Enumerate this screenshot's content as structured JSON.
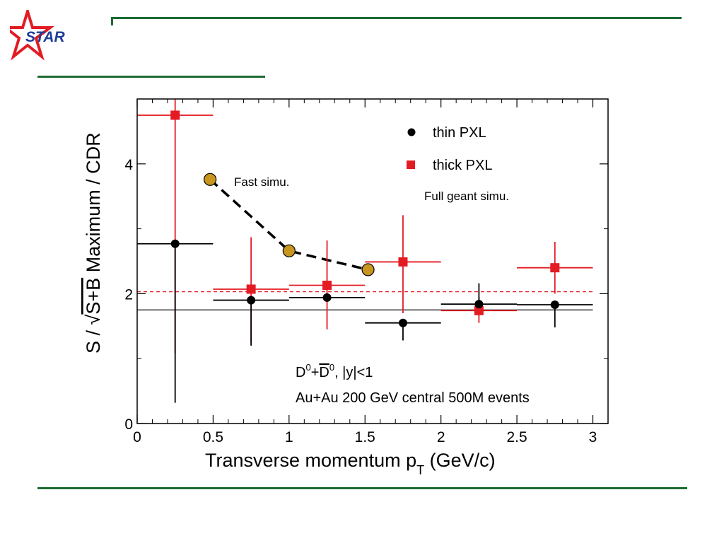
{
  "logo": {
    "text": "STAR",
    "star_color": "#e31b23",
    "text_color": "#1f3d99"
  },
  "colors": {
    "rule": "#1e6b32",
    "thin": "#000000",
    "thick": "#e31b23",
    "fast": "#c8961e"
  },
  "chart_data": {
    "type": "scatter",
    "xlabel_main": "Transverse momentum p",
    "xlabel_sub": "T",
    "xlabel_tail": " (GeV/c)",
    "ylabel_pre": "S / ",
    "ylabel_root": "S+B",
    "ylabel_post": " Maximum / CDR",
    "xlim": [
      0,
      3.1
    ],
    "ylim": [
      0,
      5
    ],
    "x_ticks": [
      "0",
      "0.5",
      "1",
      "1.5",
      "2",
      "2.5",
      "3"
    ],
    "y_ticks": [
      "0",
      "2",
      "4"
    ],
    "grid": false,
    "legend_position": "top-right",
    "series": [
      {
        "name": "thin PXL",
        "marker": "circle",
        "color": "#000000",
        "points": [
          {
            "x": 0.25,
            "y": 2.77,
            "xerr": 0.25,
            "ylo": 0.32,
            "yhi": 2.77
          },
          {
            "x": 0.75,
            "y": 1.9,
            "xerr": 0.25,
            "ylo": 1.2,
            "yhi": 1.9
          },
          {
            "x": 1.25,
            "y": 1.94,
            "xerr": 0.25,
            "ylo": 1.94,
            "yhi": 1.94
          },
          {
            "x": 1.75,
            "y": 1.55,
            "xerr": 0.25,
            "ylo": 1.28,
            "yhi": 1.55
          },
          {
            "x": 2.25,
            "y": 1.84,
            "xerr": 0.25,
            "ylo": 1.84,
            "yhi": 2.16
          },
          {
            "x": 2.75,
            "y": 1.83,
            "xerr": 0.25,
            "ylo": 1.48,
            "yhi": 1.83
          }
        ]
      },
      {
        "name": "thick PXL",
        "marker": "square",
        "color": "#e31b23",
        "points": [
          {
            "x": 0.25,
            "y": 4.75,
            "xerr": 0.25,
            "ylo": 1.08,
            "yhi": 5.0
          },
          {
            "x": 0.75,
            "y": 2.07,
            "xerr": 0.25,
            "ylo": 1.25,
            "yhi": 2.87
          },
          {
            "x": 1.25,
            "y": 2.13,
            "xerr": 0.25,
            "ylo": 1.45,
            "yhi": 2.82
          },
          {
            "x": 1.75,
            "y": 2.49,
            "xerr": 0.25,
            "ylo": 1.7,
            "yhi": 3.21
          },
          {
            "x": 2.25,
            "y": 1.74,
            "xerr": 0.25,
            "ylo": 1.55,
            "yhi": 1.95
          },
          {
            "x": 2.75,
            "y": 2.4,
            "xerr": 0.25,
            "ylo": 2.0,
            "yhi": 2.8
          }
        ]
      },
      {
        "marker": "circle-large",
        "color": "#c8961e",
        "line": "dashed",
        "points": [
          {
            "x": 0.48,
            "y": 3.76
          },
          {
            "x": 1.0,
            "y": 2.66
          },
          {
            "x": 1.52,
            "y": 2.37
          }
        ]
      }
    ],
    "reference_lines": [
      {
        "y": 1.75,
        "color": "#000000",
        "style": "solid"
      },
      {
        "y": 2.03,
        "color": "#e31b23",
        "style": "dashed"
      }
    ],
    "annotations": {
      "fast": "Fast simu.",
      "full": "Full geant simu.",
      "channel_a": "D",
      "channel_sup1": "0",
      "channel_plus": "+",
      "channel_b": "D",
      "channel_sup2": "0",
      "channel_rest": ", |y|<1",
      "events": "Au+Au 200 GeV central 500M events"
    }
  }
}
